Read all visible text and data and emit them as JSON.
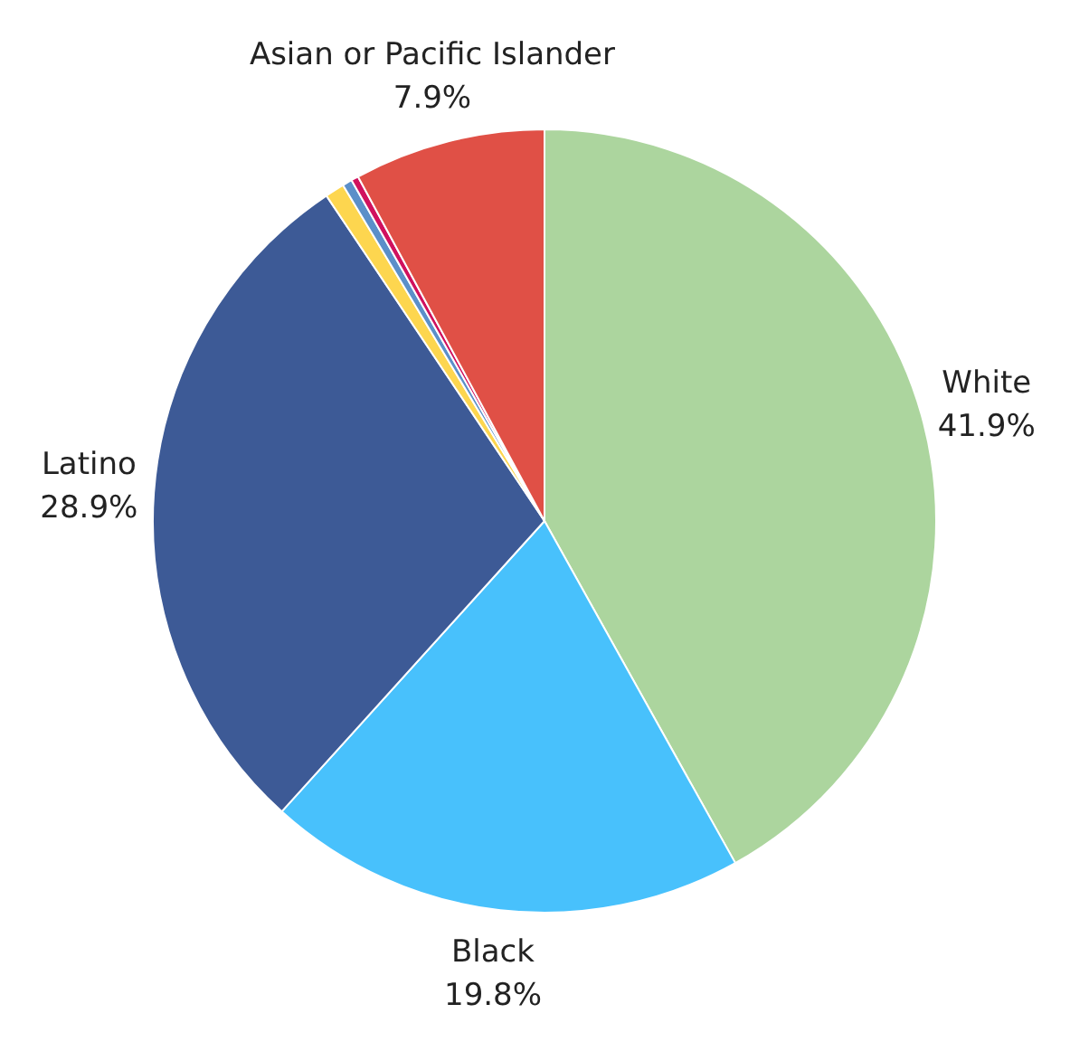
{
  "chart_data": {
    "type": "pie",
    "categories": [
      "White",
      "Black",
      "Latino",
      null,
      null,
      null,
      "Asian or Pacific Islander"
    ],
    "values": [
      41.9,
      19.8,
      28.9,
      0.8,
      0.4,
      0.3,
      7.9
    ],
    "value_labels": [
      "41.9%",
      "19.8%",
      "28.9%",
      null,
      null,
      null,
      "7.9%"
    ],
    "colors": [
      "#acd59e",
      "#48c1fc",
      "#3d5a96",
      "#fdd64f",
      "#5b8fc9",
      "#d0115e",
      "#e05046"
    ],
    "legend": false
  }
}
